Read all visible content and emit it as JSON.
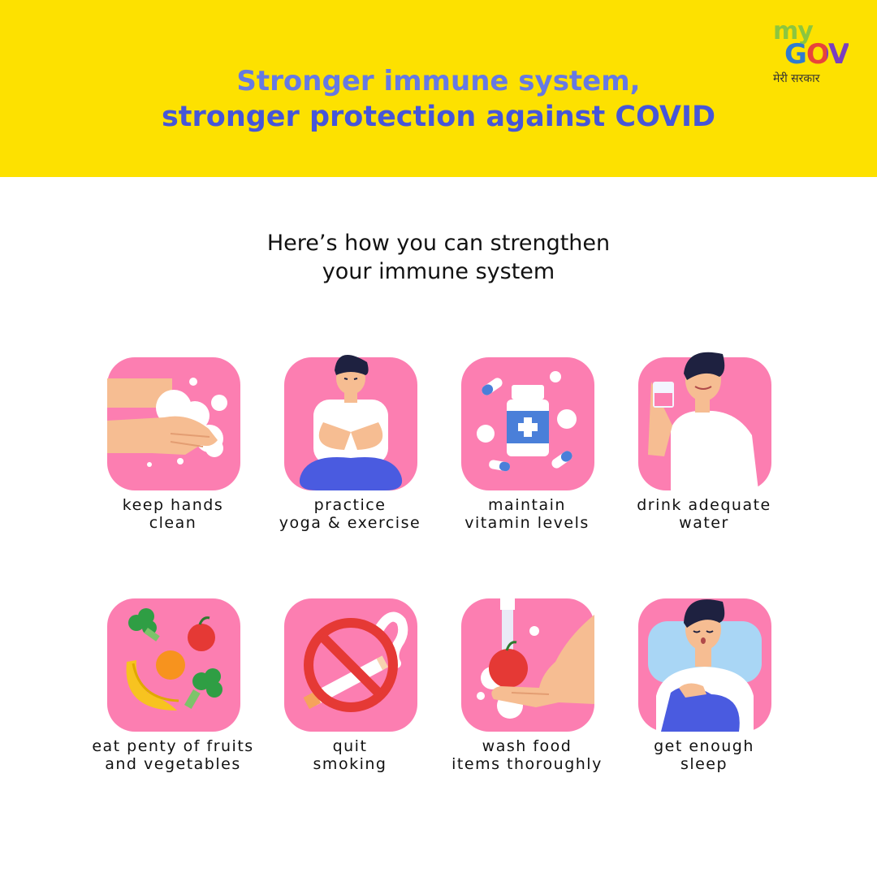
{
  "header": {
    "title_line1": "Stronger immune system,",
    "title_line2": "stronger protection against COVID",
    "background_color": "#fde100",
    "title_color": "#4a5be0"
  },
  "logo": {
    "my": "my",
    "gov": "GOV",
    "hindi": "मेरी सरकार"
  },
  "intro": {
    "line1": "Here’s how you can strengthen",
    "line2": "your immune system"
  },
  "tips": [
    {
      "icon": "handwash-icon",
      "line1": "keep hands",
      "line2": "clean"
    },
    {
      "icon": "yoga-icon",
      "line1": "practice",
      "line2": "yoga & exercise"
    },
    {
      "icon": "vitamin-bottle-icon",
      "line1": "maintain",
      "line2": "vitamin levels"
    },
    {
      "icon": "drinking-water-icon",
      "line1": "drink adequate",
      "line2": "water"
    },
    {
      "icon": "fruits-vegetables-icon",
      "line1": "eat penty of fruits",
      "line2": "and vegetables"
    },
    {
      "icon": "no-smoking-icon",
      "line1": "quit",
      "line2": "smoking"
    },
    {
      "icon": "wash-food-icon",
      "line1": "wash food",
      "line2": "items thoroughly"
    },
    {
      "icon": "sleep-icon",
      "line1": "get enough",
      "line2": "sleep"
    }
  ],
  "colors": {
    "tile_pink": "#fc7eb1",
    "accent_blue": "#4a5be0",
    "skin": "#f6bd92"
  }
}
